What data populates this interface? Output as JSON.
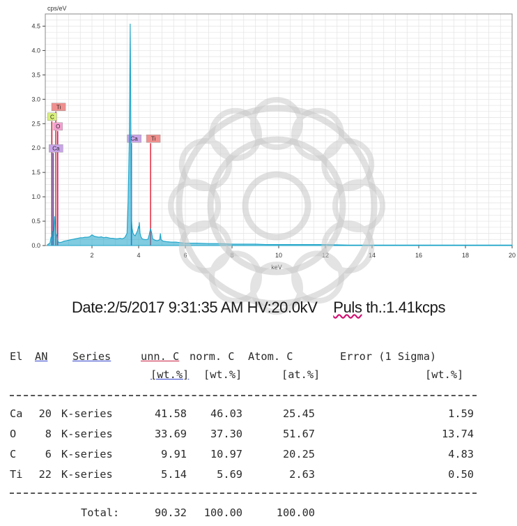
{
  "chart_data": {
    "type": "line",
    "title": "",
    "xlabel": "keV",
    "ylabel": "cps/eV",
    "xlim": [
      0,
      20
    ],
    "ylim": [
      0,
      4.75
    ],
    "x_ticks": [
      2,
      4,
      6,
      8,
      10,
      12,
      14,
      16,
      18,
      20
    ],
    "y_ticks": [
      0.0,
      0.5,
      1.0,
      1.5,
      2.0,
      2.5,
      3.0,
      3.5,
      4.0,
      4.5
    ],
    "y_tick_labels": [
      "0.0",
      "0.5",
      "1.0",
      "1.5",
      "2.0",
      "2.5",
      "3.0",
      "3.5",
      "4.0",
      "4.5"
    ],
    "grid": true,
    "series": [
      {
        "color": "#1aa3c8",
        "x": [
          0.1,
          0.2,
          0.25,
          0.28,
          0.32,
          0.36,
          0.4,
          0.45,
          0.5,
          0.55,
          0.6,
          0.7,
          0.8,
          0.9,
          1.0,
          1.1,
          1.2,
          1.3,
          1.4,
          1.5,
          1.6,
          1.7,
          1.8,
          1.9,
          2.0,
          2.1,
          2.2,
          2.3,
          2.4,
          2.5,
          2.6,
          2.7,
          2.8,
          2.9,
          3.0,
          3.1,
          3.2,
          3.3,
          3.4,
          3.5,
          3.55,
          3.6,
          3.64,
          3.66,
          3.69,
          3.72,
          3.76,
          3.8,
          3.85,
          3.9,
          3.95,
          4.0,
          4.01,
          4.03,
          4.06,
          4.1,
          4.15,
          4.2,
          4.3,
          4.4,
          4.45,
          4.51,
          4.56,
          4.6,
          4.7,
          4.8,
          4.9,
          4.93,
          4.96,
          5.05,
          5.2,
          5.4,
          5.6,
          5.8,
          6.0,
          6.5,
          7.0,
          7.5,
          8.0,
          8.5,
          9.0,
          9.5,
          10.0,
          11.0,
          12.0,
          13.0,
          14.0,
          15.0,
          16.0,
          18.0,
          20.0
        ],
        "y": [
          0.02,
          0.05,
          0.18,
          0.1,
          0.3,
          0.2,
          0.6,
          0.25,
          0.2,
          0.08,
          0.06,
          0.07,
          0.09,
          0.1,
          0.11,
          0.12,
          0.13,
          0.14,
          0.15,
          0.16,
          0.16,
          0.17,
          0.17,
          0.18,
          0.22,
          0.19,
          0.18,
          0.17,
          0.18,
          0.16,
          0.17,
          0.16,
          0.15,
          0.15,
          0.14,
          0.14,
          0.15,
          0.14,
          0.16,
          0.25,
          0.9,
          2.2,
          4.55,
          3.0,
          0.6,
          0.35,
          0.25,
          0.22,
          0.2,
          0.25,
          0.3,
          0.4,
          0.35,
          0.48,
          0.25,
          0.18,
          0.14,
          0.13,
          0.12,
          0.13,
          0.22,
          0.35,
          0.25,
          0.14,
          0.11,
          0.1,
          0.12,
          0.25,
          0.12,
          0.09,
          0.08,
          0.07,
          0.07,
          0.06,
          0.05,
          0.05,
          0.04,
          0.04,
          0.03,
          0.03,
          0.03,
          0.02,
          0.02,
          0.02,
          0.02,
          0.01,
          0.01,
          0.01,
          0.01,
          0.01,
          0.01
        ]
      }
    ],
    "markers": [
      {
        "label": "Ti",
        "x": 0.45,
        "height": 2.75,
        "line_color": "#e8344a",
        "bg": "#f0908e"
      },
      {
        "label": "C",
        "x": 0.28,
        "height": 2.55,
        "line_color": "#cc2244",
        "bg": "#d8f07a"
      },
      {
        "label": "O",
        "x": 0.53,
        "height": 2.35,
        "line_color": "#d01070",
        "bg": "#f4a0d0"
      },
      {
        "label": "Ca",
        "x": 0.34,
        "height": 1.9,
        "line_color": "#1a66dd",
        "bg": "#c9a4e8"
      },
      {
        "label": "Ca",
        "x": 3.69,
        "height": 2.1,
        "line_color": "#1a66dd",
        "bg": "#c9a4e8"
      },
      {
        "label": "Ti",
        "x": 4.51,
        "height": 2.1,
        "line_color": "#e8344a",
        "bg": "#f0908e"
      }
    ]
  },
  "info": {
    "date_text": "Date:2/5/2017 9:31:35 AM HV:20.0kV",
    "puls_label": "Puls",
    "puls_value": " th.:1.41kcps"
  },
  "results": {
    "header1": [
      "El",
      "AN",
      "Series",
      "unn. C",
      "norm. C",
      "Atom. C",
      "Error (1 Sigma)"
    ],
    "header2": [
      "[wt.%]",
      "[wt.%]",
      "[at.%]",
      "[wt.%]"
    ],
    "rows": [
      {
        "el": "Ca",
        "an": "20",
        "series": "K-series",
        "unn": "41.58",
        "norm": "46.03",
        "atom": "25.45",
        "error": "1.59"
      },
      {
        "el": "O",
        "an": "8",
        "series": "K-series",
        "unn": "33.69",
        "norm": "37.30",
        "atom": "51.67",
        "error": "13.74"
      },
      {
        "el": "C",
        "an": "6",
        "series": "K-series",
        "unn": "9.91",
        "norm": "10.97",
        "atom": "20.25",
        "error": "4.83"
      },
      {
        "el": "Ti",
        "an": "22",
        "series": "K-series",
        "unn": "5.14",
        "norm": "5.69",
        "atom": "2.63",
        "error": "0.50"
      }
    ],
    "total_label": "Total:",
    "totals": {
      "unn": "90.32",
      "norm": "100.00",
      "atom": "100.00"
    }
  }
}
